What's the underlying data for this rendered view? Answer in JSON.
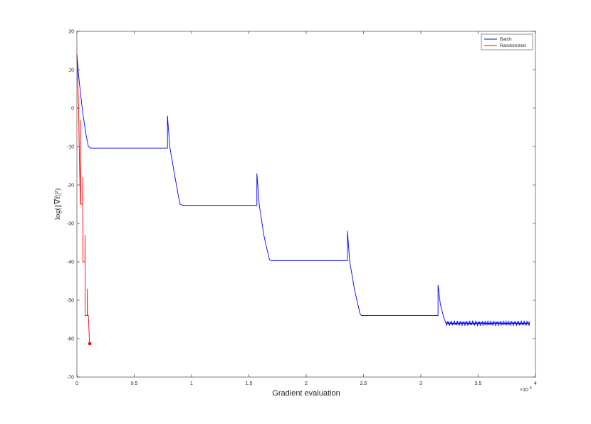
{
  "chart_data": {
    "type": "line",
    "title": "",
    "xlabel": "Gradient evaluation",
    "ylabel": "log(||∇f||²)",
    "x_multiplier": "×10",
    "x_multiplier_exp": "5",
    "xlim": [
      0,
      4
    ],
    "ylim": [
      -70,
      20
    ],
    "xticks": [
      "0",
      "0.5",
      "1",
      "1.5",
      "2",
      "2.5",
      "3",
      "3.5",
      "4"
    ],
    "yticks": [
      "20",
      "10",
      "0",
      "-10",
      "-20",
      "-30",
      "-40",
      "-50",
      "-60",
      "-70"
    ],
    "grid": false,
    "legend_position": "top-right",
    "series": [
      {
        "name": "Batch",
        "color": "#0000ff",
        "x": [
          0,
          0.02,
          0.05,
          0.08,
          0.1,
          0.12,
          0.79,
          0.79,
          0.81,
          0.85,
          0.88,
          0.9,
          0.92,
          1.57,
          1.57,
          1.59,
          1.63,
          1.66,
          1.68,
          1.7,
          2.36,
          2.36,
          2.38,
          2.42,
          2.45,
          2.47,
          2.48,
          3.15,
          3.15,
          3.17,
          3.2,
          3.22,
          3.95
        ],
        "y": [
          14,
          7,
          -1,
          -7,
          -10,
          -10.4,
          -10.4,
          -2,
          -10,
          -17,
          -22,
          -25,
          -25.3,
          -25.3,
          -17,
          -25,
          -33,
          -37,
          -39.5,
          -39.7,
          -39.7,
          -32,
          -40,
          -47,
          -51,
          -53.5,
          -54,
          -54,
          -46,
          -51,
          -54.5,
          -56,
          -56
        ]
      },
      {
        "name": "Randomized",
        "color": "#ff0000",
        "x": [
          0,
          0.005,
          0.012,
          0.015,
          0.02,
          0.03,
          0.031,
          0.032,
          0.05,
          0.051,
          0.052,
          0.06,
          0.07,
          0.071,
          0.072,
          0.09,
          0.091,
          0.092,
          0.1,
          0.11,
          0.111,
          0.112
        ],
        "y": [
          14,
          9,
          3,
          0,
          -10,
          -25,
          -3,
          -25,
          -25,
          -18,
          -40,
          -40,
          -40,
          -33,
          -54,
          -54,
          -47,
          -54,
          -54,
          -61,
          -61,
          -61
        ]
      }
    ],
    "markers": [
      {
        "x": 0.112,
        "y": -61.3,
        "color": "#ff0000"
      }
    ]
  }
}
